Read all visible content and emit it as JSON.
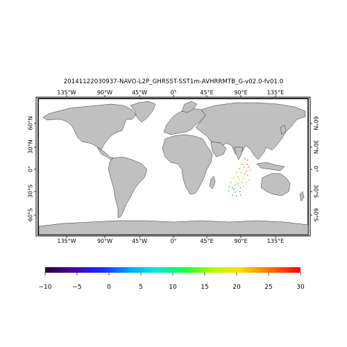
{
  "title": "20141122030937-NAVO-L2P_GHRSST-SST1m-AVHRRMTB_G-v02.0-fv01.0",
  "map": {
    "lon_labels": [
      "135°W",
      "90°W",
      "45°W",
      "0°",
      "45°E",
      "90°E",
      "135°E"
    ],
    "lat_labels": [
      "60°N",
      "30°N",
      "0°",
      "30°S",
      "60°S"
    ],
    "land_color": "#c0c0c0",
    "ocean_color": "#ffffff",
    "swath_lon_range": [
      75,
      115
    ],
    "swath_lat_range": [
      -32,
      5
    ]
  },
  "colorbar": {
    "ticks": [
      "−10",
      "−5",
      "0",
      "5",
      "10",
      "15",
      "20",
      "25",
      "30"
    ],
    "range": [
      -10,
      30
    ],
    "colormap": "rainbow"
  }
}
